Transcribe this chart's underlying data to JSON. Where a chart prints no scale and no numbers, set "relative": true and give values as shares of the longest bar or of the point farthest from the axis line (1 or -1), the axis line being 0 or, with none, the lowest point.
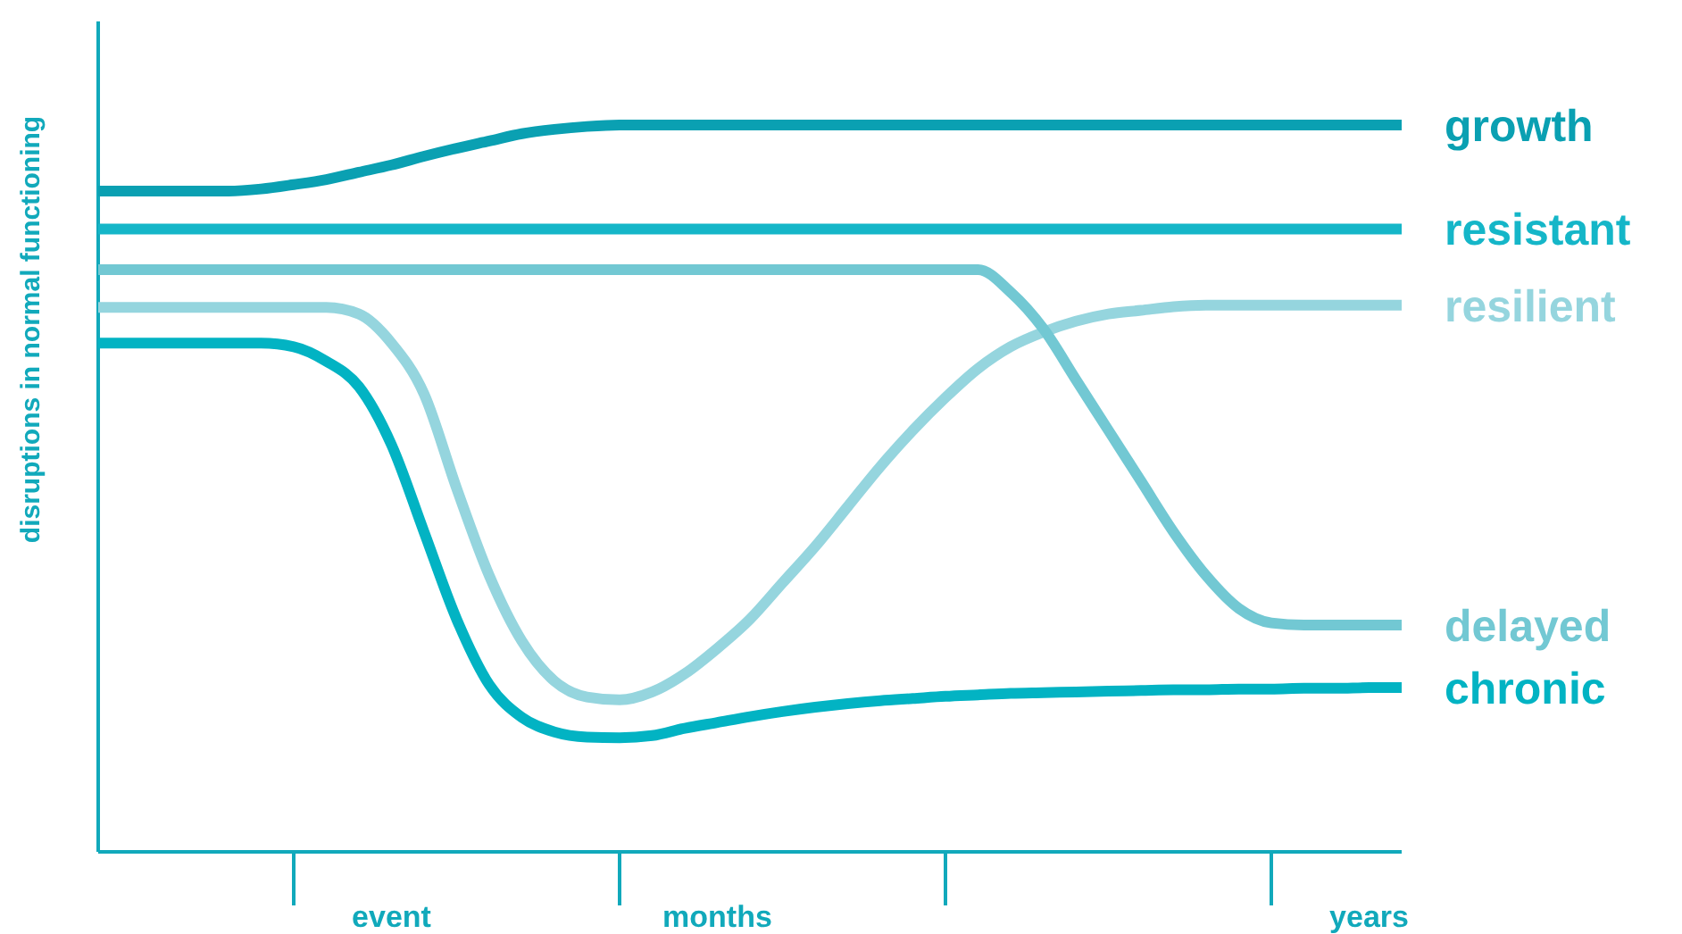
{
  "chart_data": {
    "type": "line",
    "relative": true,
    "ylabel": "disruptions in normal functioning",
    "categories": [
      null,
      null,
      null,
      null,
      null,
      null,
      null,
      null,
      null,
      "event",
      null,
      null,
      null,
      null,
      null,
      null,
      null,
      null,
      null,
      "months",
      null,
      null,
      null,
      null,
      null,
      null,
      null,
      null,
      null,
      null,
      null,
      null,
      null,
      null,
      null,
      null,
      null,
      null,
      null,
      "years",
      null
    ],
    "line_style": "solid",
    "marker": "none",
    "series": [
      {
        "name": "growth",
        "color": "#0aa0b2",
        "values": [
          0.909,
          0.909,
          0.909,
          0.909,
          0.909,
          0.912,
          0.918,
          0.925,
          0.935,
          0.945,
          0.957,
          0.968,
          0.978,
          0.988,
          0.994,
          0.998,
          1,
          1,
          1,
          1,
          1,
          1,
          1,
          1,
          1,
          1,
          1,
          1,
          1,
          1,
          1,
          1,
          1,
          1,
          1,
          1,
          1,
          1,
          1,
          1,
          1
        ]
      },
      {
        "name": "resistant",
        "color": "#15b6c8",
        "values": [
          0.857,
          0.857,
          0.857,
          0.857,
          0.857,
          0.857,
          0.857,
          0.857,
          0.857,
          0.857,
          0.857,
          0.857,
          0.857,
          0.857,
          0.857,
          0.857,
          0.857,
          0.857,
          0.857,
          0.857,
          0.857,
          0.857,
          0.857,
          0.857,
          0.857,
          0.857,
          0.857,
          0.857,
          0.857,
          0.857,
          0.857,
          0.857,
          0.857,
          0.857,
          0.857,
          0.857,
          0.857,
          0.857,
          0.857,
          0.857,
          0.857
        ]
      },
      {
        "name": "resilient",
        "color": "#95d5de",
        "values": [
          0.749,
          0.749,
          0.749,
          0.749,
          0.749,
          0.749,
          0.749,
          0.749,
          0.74,
          0.7,
          0.63,
          0.5,
          0.38,
          0.29,
          0.235,
          0.213,
          0.209,
          0.22,
          0.245,
          0.28,
          0.32,
          0.37,
          0.42,
          0.475,
          0.53,
          0.58,
          0.625,
          0.665,
          0.695,
          0.715,
          0.73,
          0.74,
          0.745,
          0.75,
          0.752,
          0.752,
          0.752,
          0.752,
          0.752,
          0.752,
          0.752
        ]
      },
      {
        "name": "delayed",
        "color": "#72c8d3",
        "values": [
          0.801,
          0.801,
          0.801,
          0.801,
          0.801,
          0.801,
          0.801,
          0.801,
          0.801,
          0.801,
          0.801,
          0.801,
          0.801,
          0.801,
          0.801,
          0.801,
          0.801,
          0.801,
          0.801,
          0.801,
          0.801,
          0.801,
          0.801,
          0.801,
          0.801,
          0.801,
          0.801,
          0.801,
          0.77,
          0.72,
          0.65,
          0.58,
          0.51,
          0.44,
          0.38,
          0.335,
          0.315,
          0.312,
          0.312,
          0.312,
          0.312
        ]
      },
      {
        "name": "chronic",
        "color": "#02b3c3",
        "values": [
          0.7,
          0.7,
          0.7,
          0.7,
          0.7,
          0.7,
          0.695,
          0.675,
          0.64,
          0.56,
          0.44,
          0.32,
          0.23,
          0.185,
          0.165,
          0.158,
          0.157,
          0.16,
          0.17,
          0.178,
          0.186,
          0.193,
          0.199,
          0.204,
          0.208,
          0.211,
          0.214,
          0.216,
          0.218,
          0.219,
          0.22,
          0.221,
          0.222,
          0.223,
          0.223,
          0.224,
          0.224,
          0.225,
          0.225,
          0.226,
          0.226
        ]
      }
    ]
  }
}
